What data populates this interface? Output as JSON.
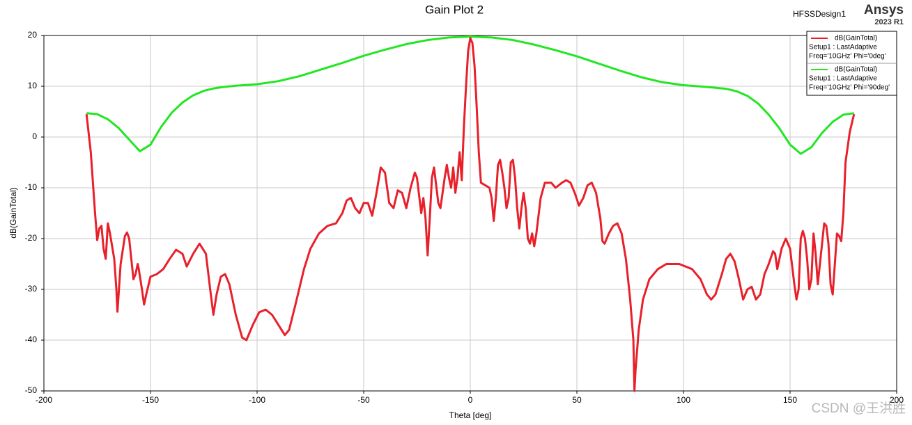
{
  "chart_data": {
    "type": "line",
    "title": "Gain Plot 2",
    "design": "HFSSDesign1",
    "brand": "Ansys",
    "version": "2023 R1",
    "watermark": "CSDN @王洪胜",
    "xlabel": "Theta [deg]",
    "ylabel": "dB(GainTotal)",
    "xlim": [
      -200,
      200
    ],
    "xticks": [
      -200,
      -150,
      -100,
      -50,
      0,
      50,
      100,
      150,
      200
    ],
    "ylim": [
      -50,
      20
    ],
    "yticks": [
      -50,
      -40,
      -30,
      -20,
      -10,
      0,
      10,
      20
    ],
    "grid": true,
    "legend": "top-right",
    "series": [
      {
        "name": "dB(GainTotal)",
        "description": [
          "Setup1 : LastAdaptive",
          "Freq='10GHz' Phi='0deg'"
        ],
        "color": "#e8202a",
        "x": [
          -180,
          -178,
          -176,
          -175,
          -174,
          -173,
          -172,
          -171,
          -170,
          -169,
          -167,
          -166,
          -165.5,
          -164,
          -162,
          -161,
          -160,
          -158,
          -157,
          -156,
          -155.5,
          -154,
          -153,
          -152,
          -150,
          -147,
          -144,
          -141,
          -138,
          -135,
          -133,
          -130,
          -127,
          -124,
          -122,
          -120.5,
          -119,
          -117,
          -115,
          -113,
          -110,
          -107,
          -105,
          -102,
          -99,
          -96,
          -93,
          -90,
          -87,
          -85,
          -82,
          -78,
          -75,
          -71,
          -67,
          -63,
          -60,
          -58,
          -56,
          -54,
          -52,
          -50,
          -48,
          -46,
          -44,
          -42,
          -40,
          -38,
          -36,
          -34,
          -32,
          -30,
          -28,
          -26,
          -25,
          -23,
          -22,
          -21,
          -20,
          -19,
          -18,
          -17,
          -15,
          -14,
          -12,
          -11,
          -10,
          -9,
          -8,
          -7,
          -6,
          -5,
          -4,
          -3,
          -2,
          -1,
          0,
          1,
          2,
          3,
          4,
          5,
          7,
          9,
          10,
          11,
          12,
          13,
          14,
          15,
          16,
          17,
          18,
          19,
          20,
          21,
          22,
          23,
          24,
          25,
          26,
          27,
          28,
          29,
          30,
          31,
          33,
          35,
          38,
          40,
          43,
          45,
          47,
          49,
          51,
          53,
          55,
          57,
          59,
          61,
          62,
          63,
          65,
          67,
          69,
          71,
          73,
          75,
          76.5,
          77,
          77.5,
          79,
          81,
          84,
          88,
          92,
          98,
          104,
          108,
          111,
          113,
          115,
          118,
          120,
          122,
          124,
          126,
          128,
          130,
          132,
          134,
          136,
          138,
          140,
          142,
          143,
          144,
          146,
          148,
          150,
          152,
          153,
          154,
          155,
          156,
          157,
          158,
          159,
          160,
          161,
          162,
          163,
          164,
          166,
          167,
          168,
          169,
          170,
          171,
          172,
          173,
          174,
          175,
          176,
          178,
          180
        ],
        "values": [
          4.5,
          -3,
          -15,
          -20.3,
          -18,
          -17.5,
          -22,
          -24,
          -17,
          -19,
          -24,
          -30,
          -34.4,
          -25,
          -19.5,
          -18.8,
          -20,
          -28,
          -27,
          -25,
          -26,
          -30,
          -33,
          -31,
          -27.5,
          -27,
          -26,
          -24,
          -22.2,
          -23,
          -25.5,
          -23,
          -21,
          -23,
          -30,
          -35,
          -31,
          -27.5,
          -27,
          -29,
          -35,
          -39.5,
          -40,
          -37,
          -34.5,
          -34,
          -35,
          -37,
          -39,
          -38,
          -33,
          -26,
          -22,
          -19,
          -17.5,
          -17,
          -15,
          -12.5,
          -12,
          -14,
          -15,
          -13,
          -13,
          -15.5,
          -11,
          -6,
          -7,
          -13,
          -14,
          -10.5,
          -11,
          -14,
          -10,
          -7,
          -8,
          -15,
          -12,
          -16,
          -23.3,
          -16,
          -8,
          -6,
          -13,
          -14,
          -8,
          -5.5,
          -8,
          -10,
          -6,
          -11,
          -8,
          -3,
          -8.5,
          2,
          10,
          17,
          19.5,
          18.5,
          14,
          6,
          -3,
          -9,
          -9.5,
          -10,
          -12,
          -16.5,
          -12,
          -5.5,
          -4.5,
          -7,
          -10,
          -14,
          -12,
          -5,
          -4.5,
          -8,
          -14,
          -18,
          -14,
          -11,
          -14,
          -20,
          -21,
          -19,
          -21.5,
          -19,
          -12,
          -9,
          -9,
          -10,
          -9,
          -8.5,
          -9,
          -11,
          -13.5,
          -12,
          -9.5,
          -9,
          -11,
          -16,
          -20.5,
          -21,
          -19,
          -17.5,
          -17,
          -19,
          -24,
          -32,
          -40,
          -50,
          -46,
          -38,
          -32,
          -28,
          -26,
          -25,
          -25,
          -26,
          -28,
          -31,
          -32,
          -31,
          -27,
          -24,
          -23,
          -24.5,
          -28,
          -32,
          -30,
          -29.5,
          -32,
          -31,
          -27,
          -25,
          -22.5,
          -23,
          -26,
          -22,
          -20,
          -22,
          -29,
          -32,
          -30,
          -20,
          -18.5,
          -20,
          -24,
          -30,
          -28,
          -19,
          -23,
          -29,
          -25,
          -17,
          -17.5,
          -21,
          -29,
          -31,
          -25,
          -19,
          -19.5,
          -20.5,
          -15,
          -5,
          1,
          4.5
        ]
      },
      {
        "name": "dB(GainTotal)",
        "description": [
          "Setup1 : LastAdaptive",
          "Freq='10GHz' Phi='90deg'"
        ],
        "color": "#22e622",
        "x": [
          -180,
          -175,
          -170,
          -165,
          -160,
          -155,
          -150,
          -145,
          -140,
          -135,
          -130,
          -125,
          -120,
          -115,
          -110,
          -100,
          -90,
          -80,
          -70,
          -60,
          -50,
          -40,
          -30,
          -20,
          -10,
          0,
          10,
          20,
          30,
          40,
          50,
          60,
          70,
          80,
          90,
          100,
          110,
          120,
          125,
          130,
          135,
          140,
          145,
          150,
          155,
          160,
          165,
          170,
          175,
          180
        ],
        "values": [
          4.7,
          4.5,
          3.5,
          1.8,
          -0.5,
          -2.8,
          -1.5,
          2,
          4.8,
          6.8,
          8.2,
          9.1,
          9.6,
          9.9,
          10.1,
          10.4,
          11,
          12,
          13.3,
          14.6,
          16,
          17.2,
          18.3,
          19.1,
          19.6,
          19.8,
          19.6,
          19.1,
          18.2,
          17.1,
          15.9,
          14.5,
          13.1,
          11.8,
          10.8,
          10.2,
          9.9,
          9.5,
          9,
          8.1,
          6.6,
          4.4,
          1.7,
          -1.5,
          -3.3,
          -2,
          0.8,
          3,
          4.4,
          4.7
        ]
      }
    ]
  }
}
